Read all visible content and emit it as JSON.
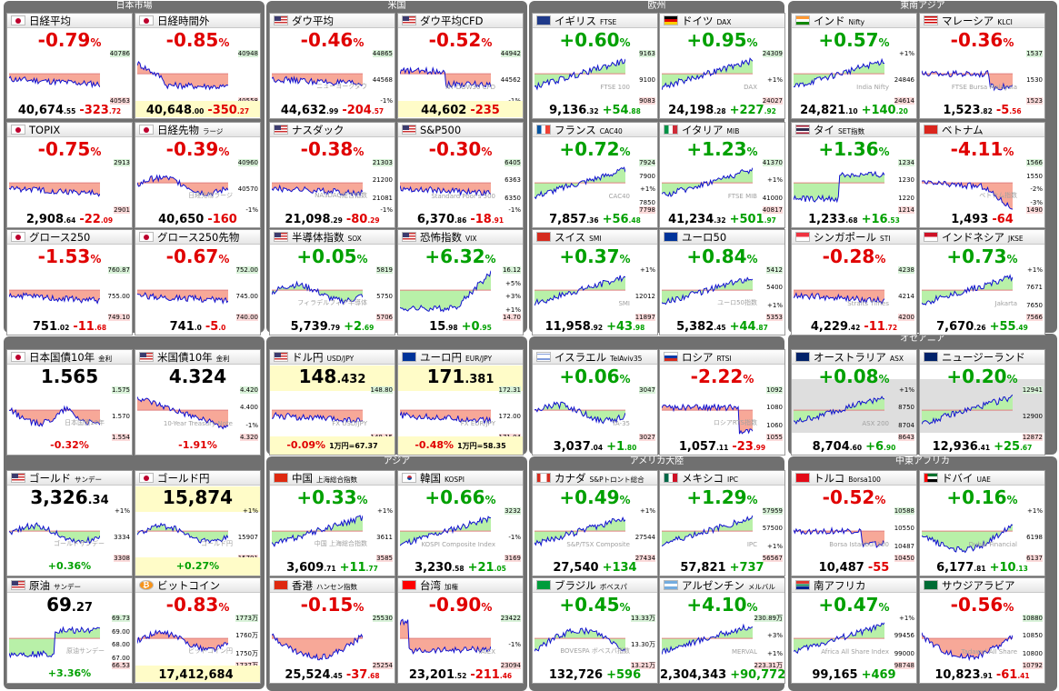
{
  "groups": [
    {
      "title": "日本市場"
    },
    {
      "title": "米国"
    },
    {
      "title": "欧州"
    },
    {
      "title": "東南アジア"
    },
    {
      "title": "オセアニア"
    },
    {
      "title": "アジア"
    },
    {
      "title": "アメリカ大陸"
    },
    {
      "title": "中東アフリカ"
    }
  ],
  "tiles": [
    {
      "name": "日経平均",
      "sub": "",
      "flag": "jp",
      "pct": "-0.79",
      "pi": "40,674",
      "pd": ".55",
      "ch": "-323",
      "cd": ".72",
      "ticks": [
        "40786",
        "40563"
      ],
      "wm": "",
      "dir": "neg",
      "shape": "flat"
    },
    {
      "name": "日経時間外",
      "sub": "",
      "flag": "jp",
      "pct": "-0.85",
      "pi": "40,648",
      "pd": ".00",
      "ch": "-350",
      "cd": ".27",
      "ticks": [
        "40948",
        "40558"
      ],
      "wm": "",
      "dir": "neg",
      "shape": "drop",
      "yfoot": true
    },
    {
      "name": "ダウ平均",
      "sub": "",
      "flag": "us",
      "pct": "-0.46",
      "pi": "44,632",
      "pd": ".99",
      "ch": "-204",
      "cd": ".57",
      "ticks": [
        "44865",
        "44568",
        "-1%"
      ],
      "wm": "ニューヨークダウ",
      "dir": "neg",
      "shape": "flat"
    },
    {
      "name": "ダウ平均CFD",
      "sub": "",
      "flag": "us",
      "pct": "-0.52",
      "pi": "44,602",
      "pd": "",
      "ch": "-235",
      "cd": "",
      "ticks": [
        "44942",
        "44562",
        "-1%"
      ],
      "wm": "NY DOW30 CFD",
      "dir": "neg",
      "shape": "stepdown",
      "yfoot": true
    },
    {
      "name": "イギリス",
      "sub": "FTSE",
      "flag": "gb",
      "pct": "+0.60",
      "pi": "9,136",
      "pd": ".32",
      "ch": "+54",
      "cd": ".88",
      "ticks": [
        "9163",
        "9100",
        "9083"
      ],
      "wm": "FTSE 100",
      "dir": "pos",
      "shape": "rise"
    },
    {
      "name": "ドイツ",
      "sub": "DAX",
      "flag": "de",
      "pct": "+0.95",
      "pi": "24,198",
      "pd": ".28",
      "ch": "+227",
      "cd": ".92",
      "ticks": [
        "24309",
        "+1%",
        "24027"
      ],
      "wm": "DAX",
      "dir": "pos",
      "shape": "rise"
    },
    {
      "name": "インド",
      "sub": "Nifty",
      "flag": "in",
      "pct": "+0.57",
      "pi": "24,821",
      "pd": ".10",
      "ch": "+140",
      "cd": ".20",
      "ticks": [
        "+1%",
        "24846",
        "24614"
      ],
      "wm": "India Nifty",
      "dir": "pos",
      "shape": "rise"
    },
    {
      "name": "マレーシア",
      "sub": "KLCI",
      "flag": "my",
      "pct": "-0.36",
      "pi": "1,523",
      "pd": ".82",
      "ch": "-5",
      "cd": ".56",
      "ticks": [
        "1537",
        "1530",
        "1523"
      ],
      "wm": "FTSE Bursa Malaysia",
      "dir": "neg",
      "shape": "flatdrop"
    },
    {
      "name": "TOPIX",
      "sub": "",
      "flag": "jp",
      "pct": "-0.75",
      "pi": "2,908",
      "pd": ".64",
      "ch": "-22",
      "cd": ".09",
      "ticks": [
        "2913",
        "2901"
      ],
      "wm": "",
      "dir": "neg",
      "shape": "flat"
    },
    {
      "name": "日経先物",
      "sub": "ラージ",
      "flag": "jp",
      "pct": "-0.39",
      "pi": "40,650",
      "pd": "",
      "ch": "-160",
      "cd": "",
      "ticks": [
        "40960",
        "40570",
        "-1%"
      ],
      "wm": "日経先物ラージ",
      "dir": "neg",
      "shape": "wave"
    },
    {
      "name": "ナスダック",
      "sub": "",
      "flag": "us",
      "pct": "-0.38",
      "pi": "21,098",
      "pd": ".29",
      "ch": "-80",
      "cd": ".29",
      "ticks": [
        "21303",
        "21200",
        "21081",
        "-1%"
      ],
      "wm": "NASDAQ総合指数",
      "dir": "neg",
      "shape": "flat"
    },
    {
      "name": "S&P500",
      "sub": "",
      "flag": "us",
      "pct": "-0.30",
      "pi": "6,370",
      "pd": ".86",
      "ch": "-18",
      "cd": ".91",
      "ticks": [
        "6405",
        "6363",
        "6350",
        "-1%"
      ],
      "wm": "Standard Poor's 500",
      "dir": "neg",
      "shape": "flat"
    },
    {
      "name": "フランス",
      "sub": "CAC40",
      "flag": "fr",
      "pct": "+0.72",
      "pi": "7,857",
      "pd": ".36",
      "ch": "+56",
      "cd": ".48",
      "ticks": [
        "7924",
        "7900",
        "+1%",
        "7850",
        "7798"
      ],
      "wm": "CAC40",
      "dir": "pos",
      "shape": "rise"
    },
    {
      "name": "イタリア",
      "sub": "MIB",
      "flag": "it",
      "pct": "+1.23",
      "pi": "41,234",
      "pd": ".32",
      "ch": "+501",
      "cd": ".97",
      "ticks": [
        "41370",
        "+1%",
        "41000",
        "40817"
      ],
      "wm": "FTSE MIB",
      "dir": "pos",
      "shape": "rise"
    },
    {
      "name": "タイ",
      "sub": "SET指数",
      "flag": "th",
      "pct": "+1.36",
      "pi": "1,233",
      "pd": ".68",
      "ch": "+16",
      "cd": ".53",
      "ticks": [
        "1234",
        "1230",
        "1220",
        "1214"
      ],
      "wm": "",
      "dir": "pos",
      "shape": "stepup"
    },
    {
      "name": "ベトナム",
      "sub": "",
      "flag": "vn",
      "pct": "-4.11",
      "pi": "1,493",
      "pd": "",
      "ch": "-64",
      "cd": "",
      "ticks": [
        "1566",
        "1550",
        "-2%",
        "-3%",
        "1490"
      ],
      "wm": "ベトナム指数",
      "dir": "neg",
      "shape": "crash"
    },
    {
      "name": "グロース250",
      "sub": "",
      "flag": "jp",
      "pct": "-1.53",
      "pi": "751",
      "pd": ".02",
      "ch": "-11",
      "cd": ".68",
      "ticks": [
        "760.87",
        "755.00",
        "749.10"
      ],
      "wm": "",
      "dir": "neg",
      "shape": "flat"
    },
    {
      "name": "グロース250先物",
      "sub": "",
      "flag": "jp",
      "pct": "-0.67",
      "pi": "741",
      "pd": ".0",
      "ch": "-5",
      "cd": ".0",
      "ticks": [
        "752.00",
        "745.00",
        "740.00"
      ],
      "wm": "",
      "dir": "neg",
      "shape": "flat"
    },
    {
      "name": "半導体指数",
      "sub": "SOX",
      "flag": "us",
      "pct": "+0.05",
      "pi": "5,739",
      "pd": ".79",
      "ch": "+2",
      "cd": ".69",
      "ticks": [
        "5819",
        "5750",
        "5706"
      ],
      "wm": "フィラデルフィア半導体",
      "dir": "pos",
      "shape": "wave"
    },
    {
      "name": "恐怖指数",
      "sub": "VIX",
      "flag": "us",
      "pct": "+6.32",
      "pi": "15",
      "pd": ".98",
      "ch": "+0",
      "cd": ".95",
      "ticks": [
        "16.12",
        "+5%",
        "+3%",
        "+1%",
        "14.70"
      ],
      "wm": "",
      "dir": "pos",
      "shape": "vix"
    },
    {
      "name": "スイス",
      "sub": "SMI",
      "flag": "ch",
      "pct": "+0.37",
      "pi": "11,958",
      "pd": ".92",
      "ch": "+43",
      "cd": ".98",
      "ticks": [
        "+1%",
        "12012",
        "11897"
      ],
      "wm": "SMI",
      "dir": "pos",
      "shape": "rise"
    },
    {
      "name": "ユーロ50",
      "sub": "",
      "flag": "eu",
      "pct": "+0.84",
      "pi": "5,382",
      "pd": ".45",
      "ch": "+44",
      "cd": ".87",
      "ticks": [
        "5412",
        "5400",
        "+1%",
        "5353"
      ],
      "wm": "ユーロ50指数",
      "dir": "pos",
      "shape": "rise"
    },
    {
      "name": "シンガポール",
      "sub": "STI",
      "flag": "sg",
      "pct": "-0.28",
      "pi": "4,229",
      "pd": ".42",
      "ch": "-11",
      "cd": ".72",
      "ticks": [
        "4238",
        "4214",
        "4200"
      ],
      "wm": "Straits Times",
      "dir": "neg",
      "shape": "flat"
    },
    {
      "name": "インドネシア",
      "sub": "JKSE",
      "flag": "id",
      "pct": "+0.73",
      "pi": "7,670",
      "pd": ".26",
      "ch": "+55",
      "cd": ".49",
      "ticks": [
        "+1%",
        "7671",
        "7650",
        "7566"
      ],
      "wm": "Jakarta",
      "dir": "pos",
      "shape": "rise"
    },
    {
      "name": "日本国債10年",
      "sub": "金利",
      "flag": "jp",
      "pfx": true,
      "bigtxt": "1.565",
      "bigsm": "",
      "bot": "-0.32",
      "botsfx": "%",
      "ticks": [
        "1.575",
        "1.570",
        "1.554"
      ],
      "wm": "日本国債10年",
      "dir": "neg",
      "shape": "bond",
      "nobigpct": true
    },
    {
      "name": "米国債10年",
      "sub": "金利",
      "flag": "us",
      "pfx": true,
      "bigtxt": "4.324",
      "bigsm": "",
      "bot": "-1.91",
      "botsfx": "%",
      "ticks": [
        "4.420",
        "4.400",
        "-1%",
        "4.320"
      ],
      "wm": "10-Year Treasury Note",
      "dir": "neg",
      "shape": "fall"
    },
    {
      "name": "ドル円",
      "sub": "USD/JPY",
      "flag": "us",
      "pfx": true,
      "yb": true,
      "bigtxt": "148",
      "bigsm": ".432",
      "bot": "-0.09",
      "botsfx": "%",
      "yen": "1万円=67.37",
      "ticks": [
        "148.80",
        "148.15"
      ],
      "wm": "FX USD/JPY",
      "dir": "neg",
      "shape": "flat"
    },
    {
      "name": "ユーロ円",
      "sub": "EUR/JPY",
      "flag": "eu",
      "pfx": true,
      "yb": true,
      "bigtxt": "171",
      "bigsm": ".381",
      "bot": "-0.48",
      "botsfx": "%",
      "yen": "1万円=58.35",
      "ticks": [
        "172.31",
        "172.00",
        "171.04"
      ],
      "wm": "FX EUR/JPY",
      "dir": "neg",
      "shape": "flat"
    },
    {
      "name": "イスラエル",
      "sub": "TelAviv35",
      "flag": "il",
      "pct": "+0.06",
      "pi": "3,037",
      "pd": ".04",
      "ch": "+1",
      "cd": ".80",
      "ticks": [
        "3047",
        "3027"
      ],
      "wm": "TA-35",
      "dir": "pos",
      "shape": "wave"
    },
    {
      "name": "ロシア",
      "sub": "RTSI",
      "flag": "ru",
      "pct": "-2.22",
      "pi": "1,057",
      "pd": ".11",
      "ch": "-23",
      "cd": ".99",
      "ticks": [
        "1092",
        "1080",
        "1060",
        "1055"
      ],
      "wm": "ロシアRTS指数",
      "dir": "neg",
      "shape": "crashend"
    },
    {
      "name": "オーストラリア",
      "sub": "ASX",
      "flag": "au",
      "pct": "+0.08",
      "pi": "8,704",
      "pd": ".60",
      "ch": "+6",
      "cd": ".90",
      "ticks": [
        "+1%",
        "8750",
        "8704",
        "8643"
      ],
      "wm": "ASX 200",
      "dir": "pos",
      "shape": "rise",
      "shaded": true
    },
    {
      "name": "ニュージーランド",
      "sub": "",
      "flag": "nz",
      "pct": "+0.20",
      "pi": "12,936",
      "pd": ".41",
      "ch": "+25",
      "cd": ".67",
      "ticks": [
        "12941",
        "12900",
        "12872"
      ],
      "wm": "",
      "dir": "pos",
      "shape": "rise",
      "shaded": true
    },
    {
      "name": "ゴールド",
      "sub": "サンデー",
      "flag": "us",
      "pfx": true,
      "bigtxt": "3,326",
      "bigsm": ".34",
      "bot": "+0.36",
      "botsfx": "%",
      "ticks": [
        "+1%",
        "3334",
        "3308"
      ],
      "wm": "ゴールドサンデー",
      "dir": "pos",
      "shape": "wave"
    },
    {
      "name": "ゴールド円",
      "sub": "",
      "flag": "jp",
      "pfx": true,
      "yb": true,
      "bigtxt": "15,874",
      "bigsm": "",
      "bot": "+0.27",
      "botsfx": "%",
      "ticks": [
        "+1%",
        "15907",
        "15791"
      ],
      "wm": "ゴールド円",
      "dir": "pos",
      "shape": "wave"
    },
    {
      "name": "中国",
      "sub": "上海総合指数",
      "flag": "cn",
      "pct": "+0.33",
      "pi": "3,609",
      "pd": ".71",
      "ch": "+11",
      "cd": ".77",
      "ticks": [
        "+1%",
        "3611",
        "3585"
      ],
      "wm": "中国 上海総合指数",
      "dir": "pos",
      "shape": "rise"
    },
    {
      "name": "韓国",
      "sub": "KOSPI",
      "flag": "kr",
      "pct": "+0.66",
      "pi": "3,230",
      "pd": ".58",
      "ch": "+21",
      "cd": ".05",
      "ticks": [
        "3232",
        "-1%",
        "3169"
      ],
      "wm": "KOSPI Composite Index",
      "dir": "pos",
      "shape": "rise"
    },
    {
      "name": "カナダ",
      "sub": "S&Pトロント総合",
      "flag": "ca",
      "pct": "+0.49",
      "pi": "27,540",
      "pd": "",
      "ch": "+134",
      "cd": "",
      "ticks": [
        "+1%",
        "27544",
        "27434"
      ],
      "wm": "S&P/TSX Composite",
      "dir": "pos",
      "shape": "rise"
    },
    {
      "name": "メキシコ",
      "sub": "IPC",
      "flag": "mx",
      "pct": "+1.29",
      "pi": "57,821",
      "pd": "",
      "ch": "+737",
      "cd": "",
      "ticks": [
        "57959",
        "57500",
        "+1%",
        "56567"
      ],
      "wm": "IPC",
      "dir": "pos",
      "shape": "rise"
    },
    {
      "name": "トルコ",
      "sub": "Borsa100",
      "flag": "tr",
      "pct": "-0.52",
      "pi": "10,487",
      "pd": "",
      "ch": "-55",
      "cd": "",
      "ticks": [
        "10588",
        "10550",
        "10487",
        "10450"
      ],
      "wm": "Borsa Istanbul 100",
      "dir": "neg",
      "shape": "flatdrop"
    },
    {
      "name": "ドバイ",
      "sub": "UAE",
      "flag": "ae",
      "pct": "+0.16",
      "pi": "6,177",
      "pd": ".81",
      "ch": "+10",
      "cd": ".13",
      "ticks": [
        "+1%",
        "6198",
        "6137"
      ],
      "wm": "Dubai Financial",
      "dir": "pos",
      "shape": "vrise"
    },
    {
      "name": "原油",
      "sub": "サンデー",
      "flag": "us",
      "pfx": true,
      "bigtxt": "69",
      "bigsm": ".27",
      "bot": "+3.36",
      "botsfx": "%",
      "ticks": [
        "69.73",
        "69.00",
        "68.00",
        "67.00",
        "66.53"
      ],
      "wm": "原油サンデー",
      "dir": "pos",
      "shape": "stepup"
    },
    {
      "name": "ビットコイン",
      "sub": "",
      "flag": "btc",
      "pct": "-0.83",
      "pi": "17,412,684",
      "pd": "",
      "ch": "",
      "cd": "",
      "yfoot": true,
      "ticks": [
        "1773万",
        "1760万",
        "1750万",
        "1737万"
      ],
      "wm": "ビットコイン円",
      "dir": "neg",
      "shape": "wave"
    },
    {
      "name": "香港",
      "sub": "ハンセン指数",
      "flag": "hk",
      "pct": "-0.15",
      "pi": "25,524",
      "pd": ".45",
      "ch": "-37",
      "cd": ".68",
      "ticks": [
        "25530",
        "25254"
      ],
      "wm": "",
      "dir": "neg",
      "shape": "dip"
    },
    {
      "name": "台湾",
      "sub": "加権",
      "flag": "tw",
      "pct": "-0.90",
      "pi": "23,201",
      "pd": ".52",
      "ch": "-211",
      "cd": ".46",
      "ticks": [
        "23422",
        "-1%",
        "23094"
      ],
      "wm": "TAIEX",
      "dir": "neg",
      "shape": "cliff"
    },
    {
      "name": "ブラジル",
      "sub": "ボベスパ",
      "flag": "br",
      "pct": "+0.45",
      "pi": "132,726",
      "pd": "",
      "ch": "+596",
      "cd": "",
      "ticks": [
        "13.33万",
        "13.30万",
        "13.21万"
      ],
      "wm": "BOVESPA ボベスパ指数",
      "dir": "pos",
      "shape": "hump"
    },
    {
      "name": "アルゼンチン",
      "sub": "メルバル",
      "flag": "ar",
      "pct": "+4.10",
      "pi": "2,304,343",
      "pd": "",
      "ch": "+90,772",
      "cd": "",
      "ticks": [
        "230.89万",
        "+3%",
        "+1%",
        "223.31万"
      ],
      "wm": "MERVAL",
      "dir": "pos",
      "shape": "rise"
    },
    {
      "name": "南アフリカ",
      "sub": "",
      "flag": "za",
      "pct": "+0.47",
      "pi": "99,165",
      "pd": "",
      "ch": "+469",
      "cd": "",
      "ticks": [
        "+1%",
        "99456",
        "99000",
        "98748"
      ],
      "wm": "Africa All Share Index",
      "dir": "pos",
      "shape": "rise"
    },
    {
      "name": "サウジアラビア",
      "sub": "",
      "flag": "sa",
      "pct": "-0.56",
      "pi": "10,823",
      "pd": ".91",
      "ch": "-61",
      "cd": ".41",
      "ticks": [
        "10880",
        "10850",
        "10800",
        "10792"
      ],
      "wm": "Tadawul All Share",
      "dir": "neg",
      "shape": "dip"
    }
  ]
}
